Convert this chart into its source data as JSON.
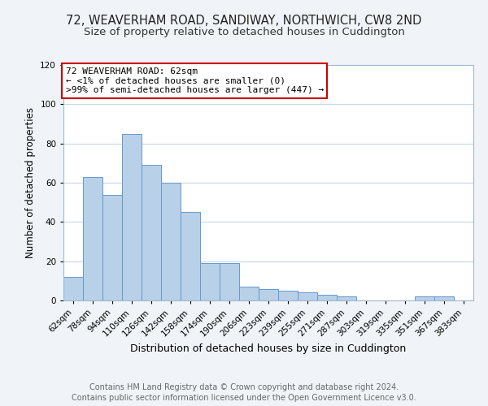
{
  "title": "72, WEAVERHAM ROAD, SANDIWAY, NORTHWICH, CW8 2ND",
  "subtitle": "Size of property relative to detached houses in Cuddington",
  "xlabel": "Distribution of detached houses by size in Cuddington",
  "ylabel": "Number of detached properties",
  "bar_color": "#b8d0e8",
  "bar_edge_color": "#6699cc",
  "annotation_box_text": "72 WEAVERHAM ROAD: 62sqm\n← <1% of detached houses are smaller (0)\n>99% of semi-detached houses are larger (447) →",
  "annotation_box_color": "#ffffff",
  "annotation_box_edge_color": "#cc0000",
  "categories": [
    "62sqm",
    "78sqm",
    "94sqm",
    "110sqm",
    "126sqm",
    "142sqm",
    "158sqm",
    "174sqm",
    "190sqm",
    "206sqm",
    "223sqm",
    "239sqm",
    "255sqm",
    "271sqm",
    "287sqm",
    "303sqm",
    "319sqm",
    "335sqm",
    "351sqm",
    "367sqm",
    "383sqm"
  ],
  "values": [
    12,
    63,
    54,
    85,
    69,
    60,
    45,
    19,
    19,
    7,
    6,
    5,
    4,
    3,
    2,
    0,
    0,
    0,
    2,
    2,
    0
  ],
  "ylim": [
    0,
    120
  ],
  "yticks": [
    0,
    20,
    40,
    60,
    80,
    100,
    120
  ],
  "footer_line1": "Contains HM Land Registry data © Crown copyright and database right 2024.",
  "footer_line2": "Contains public sector information licensed under the Open Government Licence v3.0.",
  "background_color": "#f0f4f8",
  "plot_background_color": "#ffffff",
  "title_fontsize": 10.5,
  "subtitle_fontsize": 9.5,
  "xlabel_fontsize": 9,
  "ylabel_fontsize": 8.5,
  "tick_fontsize": 7.5,
  "footer_fontsize": 7,
  "grid_color": "#c8d8ea",
  "annotation_fontsize": 8
}
